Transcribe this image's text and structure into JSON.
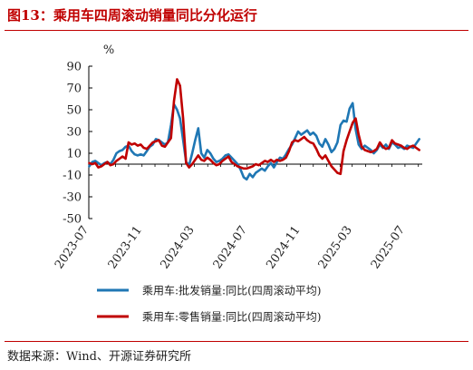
{
  "title": "图13：乘用车四周滚动销量同比分化运行",
  "source": "数据来源：Wind、开源证券研究所",
  "chart_data": {
    "type": "line",
    "ylabel": "%",
    "ylim": [
      -50,
      90
    ],
    "yticks": [
      90,
      70,
      50,
      30,
      10,
      -10,
      -30,
      -50
    ],
    "xlim": [
      "2023-07-01",
      "2025-08-10"
    ],
    "xticks": [
      "2023-07",
      "2023-11",
      "2024-03",
      "2024-07",
      "2024-11",
      "2025-03",
      "2025-07"
    ],
    "grid": false,
    "legend_position": "bottom",
    "series": [
      {
        "name": "乘用车:批发销量:同比(四周滚动平均)",
        "color": "#1f77b4",
        "points": [
          [
            "2023-07-02",
            -2
          ],
          [
            "2023-07-09",
            2
          ],
          [
            "2023-07-16",
            3
          ],
          [
            "2023-07-23",
            1
          ],
          [
            "2023-07-30",
            -1
          ],
          [
            "2023-08-06",
            1
          ],
          [
            "2023-08-13",
            2
          ],
          [
            "2023-08-20",
            0
          ],
          [
            "2023-08-27",
            4
          ],
          [
            "2023-09-03",
            10
          ],
          [
            "2023-09-10",
            12
          ],
          [
            "2023-09-17",
            13
          ],
          [
            "2023-09-24",
            16
          ],
          [
            "2023-10-01",
            17
          ],
          [
            "2023-10-08",
            12
          ],
          [
            "2023-10-15",
            9
          ],
          [
            "2023-10-22",
            8
          ],
          [
            "2023-10-29",
            9
          ],
          [
            "2023-11-05",
            8
          ],
          [
            "2023-11-12",
            12
          ],
          [
            "2023-11-19",
            16
          ],
          [
            "2023-11-26",
            18
          ],
          [
            "2023-12-03",
            23
          ],
          [
            "2023-12-10",
            22
          ],
          [
            "2023-12-17",
            20
          ],
          [
            "2023-12-24",
            18
          ],
          [
            "2023-12-31",
            20
          ],
          [
            "2024-01-07",
            36
          ],
          [
            "2024-01-14",
            55
          ],
          [
            "2024-01-21",
            50
          ],
          [
            "2024-01-28",
            42
          ],
          [
            "2024-02-04",
            22
          ],
          [
            "2024-02-11",
            2
          ],
          [
            "2024-02-18",
            -1
          ],
          [
            "2024-02-25",
            10
          ],
          [
            "2024-03-03",
            22
          ],
          [
            "2024-03-10",
            33
          ],
          [
            "2024-03-17",
            10
          ],
          [
            "2024-03-24",
            6
          ],
          [
            "2024-03-31",
            13
          ],
          [
            "2024-04-07",
            10
          ],
          [
            "2024-04-14",
            5
          ],
          [
            "2024-04-21",
            2
          ],
          [
            "2024-04-28",
            3
          ],
          [
            "2024-05-05",
            5
          ],
          [
            "2024-05-12",
            8
          ],
          [
            "2024-05-19",
            9
          ],
          [
            "2024-05-26",
            6
          ],
          [
            "2024-06-02",
            3
          ],
          [
            "2024-06-09",
            0
          ],
          [
            "2024-06-16",
            -5
          ],
          [
            "2024-06-23",
            -12
          ],
          [
            "2024-06-30",
            -14
          ],
          [
            "2024-07-07",
            -9
          ],
          [
            "2024-07-14",
            -12
          ],
          [
            "2024-07-21",
            -8
          ],
          [
            "2024-07-28",
            -6
          ],
          [
            "2024-08-04",
            -4
          ],
          [
            "2024-08-11",
            -6
          ],
          [
            "2024-08-18",
            -2
          ],
          [
            "2024-08-25",
            1
          ],
          [
            "2024-09-01",
            -3
          ],
          [
            "2024-09-08",
            2
          ],
          [
            "2024-09-15",
            6
          ],
          [
            "2024-09-22",
            5
          ],
          [
            "2024-09-29",
            9
          ],
          [
            "2024-10-06",
            14
          ],
          [
            "2024-10-13",
            18
          ],
          [
            "2024-10-20",
            24
          ],
          [
            "2024-10-27",
            30
          ],
          [
            "2024-11-03",
            27
          ],
          [
            "2024-11-10",
            29
          ],
          [
            "2024-11-17",
            31
          ],
          [
            "2024-11-24",
            27
          ],
          [
            "2024-12-01",
            29
          ],
          [
            "2024-12-08",
            26
          ],
          [
            "2024-12-15",
            19
          ],
          [
            "2024-12-22",
            16
          ],
          [
            "2024-12-29",
            23
          ],
          [
            "2025-01-05",
            18
          ],
          [
            "2025-01-12",
            11
          ],
          [
            "2025-01-19",
            14
          ],
          [
            "2025-01-26",
            20
          ],
          [
            "2025-02-02",
            36
          ],
          [
            "2025-02-09",
            40
          ],
          [
            "2025-02-16",
            39
          ],
          [
            "2025-02-23",
            51
          ],
          [
            "2025-03-02",
            56
          ],
          [
            "2025-03-09",
            32
          ],
          [
            "2025-03-16",
            18
          ],
          [
            "2025-03-23",
            14
          ],
          [
            "2025-03-30",
            17
          ],
          [
            "2025-04-06",
            15
          ],
          [
            "2025-04-13",
            13
          ],
          [
            "2025-04-20",
            10
          ],
          [
            "2025-04-27",
            13
          ],
          [
            "2025-05-04",
            18
          ],
          [
            "2025-05-11",
            15
          ],
          [
            "2025-05-18",
            18
          ],
          [
            "2025-05-25",
            14
          ],
          [
            "2025-06-01",
            20
          ],
          [
            "2025-06-08",
            18
          ],
          [
            "2025-06-15",
            15
          ],
          [
            "2025-06-22",
            16
          ],
          [
            "2025-06-29",
            14
          ],
          [
            "2025-07-06",
            17
          ],
          [
            "2025-07-13",
            16
          ],
          [
            "2025-07-20",
            15
          ],
          [
            "2025-07-27",
            19
          ],
          [
            "2025-08-03",
            23
          ]
        ]
      },
      {
        "name": "乘用车:零售销量:同比(四周滚动平均)",
        "color": "#c00000",
        "points": [
          [
            "2023-07-02",
            1
          ],
          [
            "2023-07-09",
            0
          ],
          [
            "2023-07-16",
            1
          ],
          [
            "2023-07-23",
            -3
          ],
          [
            "2023-07-30",
            -2
          ],
          [
            "2023-08-06",
            0
          ],
          [
            "2023-08-13",
            2
          ],
          [
            "2023-08-20",
            -1
          ],
          [
            "2023-08-27",
            0
          ],
          [
            "2023-09-03",
            3
          ],
          [
            "2023-09-10",
            5
          ],
          [
            "2023-09-17",
            7
          ],
          [
            "2023-09-24",
            5
          ],
          [
            "2023-10-01",
            20
          ],
          [
            "2023-10-08",
            18
          ],
          [
            "2023-10-15",
            19
          ],
          [
            "2023-10-22",
            17
          ],
          [
            "2023-10-29",
            18
          ],
          [
            "2023-11-05",
            15
          ],
          [
            "2023-11-12",
            14
          ],
          [
            "2023-11-19",
            17
          ],
          [
            "2023-11-26",
            20
          ],
          [
            "2023-12-03",
            21
          ],
          [
            "2023-12-10",
            22
          ],
          [
            "2023-12-17",
            17
          ],
          [
            "2023-12-24",
            16
          ],
          [
            "2023-12-31",
            20
          ],
          [
            "2024-01-07",
            24
          ],
          [
            "2024-01-14",
            58
          ],
          [
            "2024-01-21",
            78
          ],
          [
            "2024-01-28",
            72
          ],
          [
            "2024-02-04",
            42
          ],
          [
            "2024-02-11",
            1
          ],
          [
            "2024-02-18",
            -3
          ],
          [
            "2024-02-25",
            0
          ],
          [
            "2024-03-03",
            4
          ],
          [
            "2024-03-10",
            8
          ],
          [
            "2024-03-17",
            4
          ],
          [
            "2024-03-24",
            3
          ],
          [
            "2024-03-31",
            6
          ],
          [
            "2024-04-07",
            4
          ],
          [
            "2024-04-14",
            1
          ],
          [
            "2024-04-21",
            -1
          ],
          [
            "2024-04-28",
            0
          ],
          [
            "2024-05-05",
            3
          ],
          [
            "2024-05-12",
            5
          ],
          [
            "2024-05-19",
            7
          ],
          [
            "2024-05-26",
            2
          ],
          [
            "2024-06-02",
            0
          ],
          [
            "2024-06-09",
            -2
          ],
          [
            "2024-06-16",
            -3
          ],
          [
            "2024-06-23",
            -4
          ],
          [
            "2024-06-30",
            -4
          ],
          [
            "2024-07-07",
            -3
          ],
          [
            "2024-07-14",
            -2
          ],
          [
            "2024-07-21",
            0
          ],
          [
            "2024-07-28",
            -1
          ],
          [
            "2024-08-04",
            1
          ],
          [
            "2024-08-11",
            3
          ],
          [
            "2024-08-18",
            2
          ],
          [
            "2024-08-25",
            4
          ],
          [
            "2024-09-01",
            2
          ],
          [
            "2024-09-08",
            4
          ],
          [
            "2024-09-15",
            3
          ],
          [
            "2024-09-22",
            4
          ],
          [
            "2024-09-29",
            6
          ],
          [
            "2024-10-06",
            12
          ],
          [
            "2024-10-13",
            20
          ],
          [
            "2024-10-20",
            22
          ],
          [
            "2024-10-27",
            21
          ],
          [
            "2024-11-03",
            23
          ],
          [
            "2024-11-10",
            25
          ],
          [
            "2024-11-17",
            22
          ],
          [
            "2024-11-24",
            20
          ],
          [
            "2024-12-01",
            19
          ],
          [
            "2024-12-08",
            14
          ],
          [
            "2024-12-15",
            8
          ],
          [
            "2024-12-22",
            5
          ],
          [
            "2024-12-29",
            8
          ],
          [
            "2025-01-05",
            3
          ],
          [
            "2025-01-12",
            -2
          ],
          [
            "2025-01-19",
            -5
          ],
          [
            "2025-01-26",
            -8
          ],
          [
            "2025-02-02",
            -9
          ],
          [
            "2025-02-09",
            12
          ],
          [
            "2025-02-16",
            22
          ],
          [
            "2025-02-23",
            30
          ],
          [
            "2025-03-02",
            38
          ],
          [
            "2025-03-09",
            42
          ],
          [
            "2025-03-16",
            27
          ],
          [
            "2025-03-23",
            16
          ],
          [
            "2025-03-30",
            13
          ],
          [
            "2025-04-06",
            12
          ],
          [
            "2025-04-13",
            11
          ],
          [
            "2025-04-20",
            12
          ],
          [
            "2025-04-27",
            14
          ],
          [
            "2025-05-04",
            20
          ],
          [
            "2025-05-11",
            16
          ],
          [
            "2025-05-18",
            14
          ],
          [
            "2025-05-25",
            15
          ],
          [
            "2025-06-01",
            22
          ],
          [
            "2025-06-08",
            19
          ],
          [
            "2025-06-15",
            18
          ],
          [
            "2025-06-22",
            17
          ],
          [
            "2025-06-29",
            15
          ],
          [
            "2025-07-06",
            14
          ],
          [
            "2025-07-13",
            16
          ],
          [
            "2025-07-20",
            17
          ],
          [
            "2025-07-27",
            15
          ],
          [
            "2025-08-03",
            13
          ]
        ]
      }
    ]
  }
}
